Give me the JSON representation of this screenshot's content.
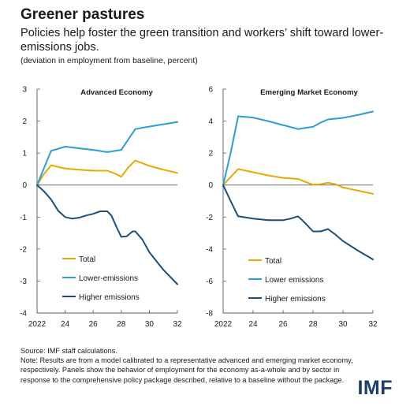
{
  "header": {
    "title": "Greener pastures",
    "subtitle": "Policies help foster the green transition and workers’ shift toward lower-emissions jobs.",
    "units": "(deviation in employment from baseline, percent)"
  },
  "footer": {
    "source": "Source: IMF staff calculations.",
    "note": "Note: Results are from a model calibrated to a representative advanced and emerging market economy, respectively. Panels show the behavior of employment for the economy as-a-whole and by sector in response to the comprehensive policy package described, relative to a baseline without the package.",
    "logo": "IMF"
  },
  "colors": {
    "total": "#e8a800",
    "lower_emissions": "#2a9fd6",
    "higher_emissions": "#1b4f7a",
    "axis": "#595959",
    "text": "#1a1a1a"
  },
  "chart_data": [
    {
      "type": "line",
      "title": "Advanced Economy",
      "xlabel": "",
      "ylabel": "",
      "xlim": [
        2022,
        2032
      ],
      "ylim": [
        -4,
        3
      ],
      "xticks": [
        2022,
        2024,
        2026,
        2028,
        2030,
        2032
      ],
      "xtick_labels": [
        "2022",
        "24",
        "26",
        "28",
        "30",
        "32"
      ],
      "yticks": [
        -4,
        -3,
        -2,
        -1,
        0,
        1,
        2,
        3
      ],
      "legend_position": "bottom-left",
      "grid": false,
      "series": [
        {
          "name": "Total",
          "color_key": "total",
          "points": [
            [
              2022,
              0
            ],
            [
              2022.5,
              0.35
            ],
            [
              2023,
              0.62
            ],
            [
              2024,
              0.52
            ],
            [
              2025,
              0.48
            ],
            [
              2026,
              0.45
            ],
            [
              2027,
              0.45
            ],
            [
              2027.6,
              0.35
            ],
            [
              2028,
              0.26
            ],
            [
              2028.5,
              0.55
            ],
            [
              2029,
              0.77
            ],
            [
              2030,
              0.6
            ],
            [
              2031,
              0.48
            ],
            [
              2032,
              0.38
            ]
          ]
        },
        {
          "name": "Lower-emissions",
          "color_key": "lower_emissions",
          "points": [
            [
              2022,
              0
            ],
            [
              2023,
              1.07
            ],
            [
              2024,
              1.2
            ],
            [
              2025,
              1.15
            ],
            [
              2026,
              1.1
            ],
            [
              2027,
              1.03
            ],
            [
              2028,
              1.1
            ],
            [
              2029,
              1.75
            ],
            [
              2030,
              1.83
            ],
            [
              2031,
              1.9
            ],
            [
              2032,
              1.97
            ]
          ]
        },
        {
          "name": "Higher emissions",
          "color_key": "higher_emissions",
          "points": [
            [
              2022,
              0
            ],
            [
              2022.5,
              -0.2
            ],
            [
              2023,
              -0.45
            ],
            [
              2023.5,
              -0.8
            ],
            [
              2024,
              -1.0
            ],
            [
              2024.5,
              -1.05
            ],
            [
              2025,
              -1.02
            ],
            [
              2025.5,
              -0.95
            ],
            [
              2026,
              -0.9
            ],
            [
              2026.5,
              -0.82
            ],
            [
              2027,
              -0.82
            ],
            [
              2027.3,
              -0.95
            ],
            [
              2027.7,
              -1.35
            ],
            [
              2028,
              -1.62
            ],
            [
              2028.4,
              -1.6
            ],
            [
              2028.8,
              -1.45
            ],
            [
              2029,
              -1.45
            ],
            [
              2029.5,
              -1.7
            ],
            [
              2030,
              -2.1
            ],
            [
              2031,
              -2.65
            ],
            [
              2032,
              -3.1
            ]
          ]
        }
      ]
    },
    {
      "type": "line",
      "title": "Emerging Market Economy",
      "xlabel": "",
      "ylabel": "",
      "xlim": [
        2022,
        2032
      ],
      "ylim": [
        -8,
        6
      ],
      "xticks": [
        2022,
        2024,
        2026,
        2028,
        2030,
        2032
      ],
      "xtick_labels": [
        "2022",
        "24",
        "26",
        "28",
        "30",
        "32"
      ],
      "yticks": [
        -8,
        -6,
        -4,
        -2,
        0,
        2,
        4,
        6
      ],
      "legend_position": "bottom-left",
      "grid": false,
      "series": [
        {
          "name": "Total",
          "color_key": "total",
          "points": [
            [
              2022,
              0
            ],
            [
              2023,
              1.0
            ],
            [
              2024,
              0.8
            ],
            [
              2025,
              0.6
            ],
            [
              2026,
              0.45
            ],
            [
              2027,
              0.38
            ],
            [
              2027.5,
              0.2
            ],
            [
              2028,
              0.02
            ],
            [
              2028.5,
              0.05
            ],
            [
              2029,
              0.15
            ],
            [
              2029.5,
              0.05
            ],
            [
              2030,
              -0.15
            ],
            [
              2031,
              -0.35
            ],
            [
              2032,
              -0.55
            ]
          ]
        },
        {
          "name": "Lower emissions",
          "color_key": "lower_emissions",
          "points": [
            [
              2022,
              0
            ],
            [
              2022.5,
              2.0
            ],
            [
              2023,
              4.3
            ],
            [
              2024,
              4.22
            ],
            [
              2025,
              4.0
            ],
            [
              2026,
              3.75
            ],
            [
              2027,
              3.5
            ],
            [
              2028,
              3.65
            ],
            [
              2028.5,
              3.9
            ],
            [
              2029,
              4.1
            ],
            [
              2030,
              4.2
            ],
            [
              2031,
              4.38
            ],
            [
              2032,
              4.6
            ]
          ]
        },
        {
          "name": "Higher emissions",
          "color_key": "higher_emissions",
          "points": [
            [
              2022,
              0
            ],
            [
              2022.5,
              -1.0
            ],
            [
              2023,
              -1.95
            ],
            [
              2024,
              -2.1
            ],
            [
              2025,
              -2.2
            ],
            [
              2026,
              -2.2
            ],
            [
              2026.5,
              -2.1
            ],
            [
              2027,
              -1.95
            ],
            [
              2027.5,
              -2.4
            ],
            [
              2028,
              -2.9
            ],
            [
              2028.5,
              -2.9
            ],
            [
              2029,
              -2.75
            ],
            [
              2029.5,
              -3.1
            ],
            [
              2030,
              -3.5
            ],
            [
              2031,
              -4.1
            ],
            [
              2032,
              -4.65
            ]
          ]
        }
      ]
    }
  ]
}
